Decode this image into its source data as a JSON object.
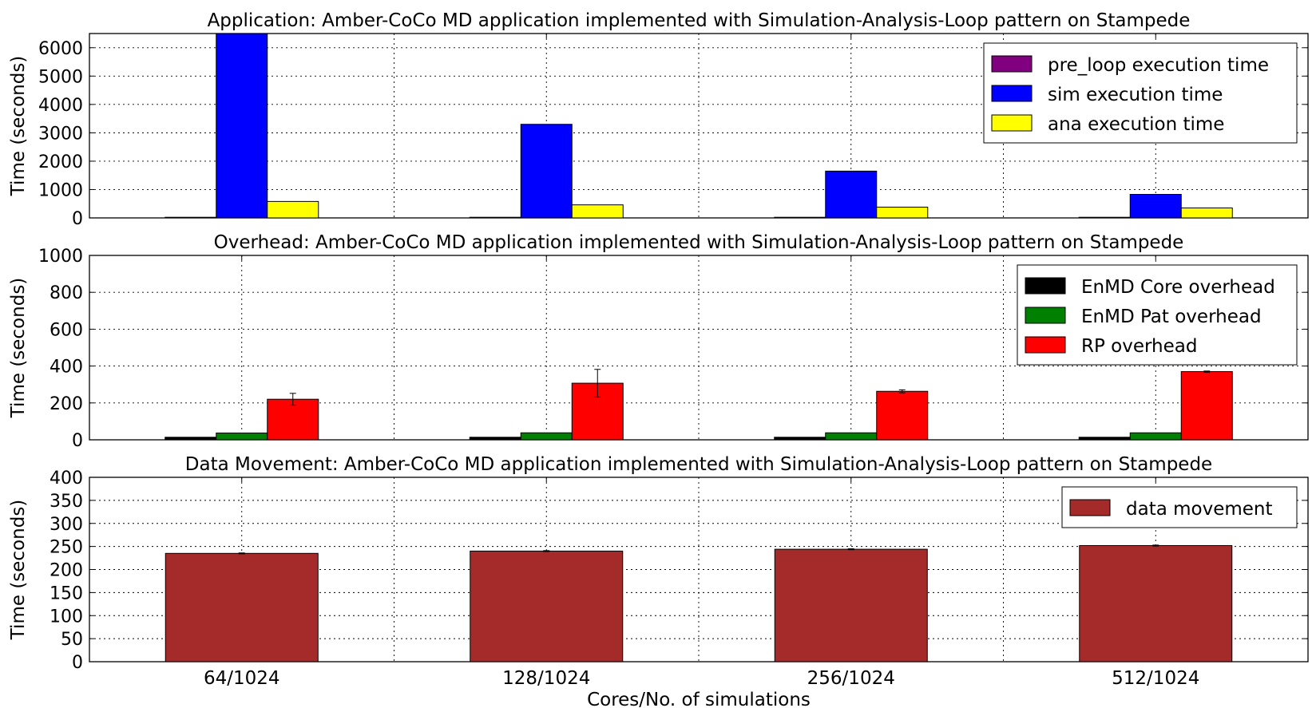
{
  "chart_data": [
    {
      "type": "bar",
      "title": "Application: Amber-CoCo MD application implemented with Simulation-Analysis-Loop pattern on Stampede",
      "ylabel": "Time (seconds)",
      "xlabel": "",
      "categories": [
        "64/1024",
        "128/1024",
        "256/1024",
        "512/1024"
      ],
      "ylim": [
        0,
        6500
      ],
      "yticks": [
        "0",
        "1000",
        "2000",
        "3000",
        "4000",
        "5000",
        "6000"
      ],
      "grid": true,
      "legend_position": "top-right",
      "series": [
        {
          "name": "pre_loop execution time",
          "color": "#800080",
          "values": [
            5,
            5,
            5,
            5
          ]
        },
        {
          "name": "sim execution time",
          "color": "#0000ff",
          "values": [
            6600,
            3300,
            1650,
            830
          ]
        },
        {
          "name": "ana execution time",
          "color": "#ffff00",
          "values": [
            580,
            460,
            380,
            350
          ]
        }
      ]
    },
    {
      "type": "bar",
      "title": "Overhead: Amber-CoCo MD application implemented with Simulation-Analysis-Loop pattern on Stampede",
      "ylabel": "Time (seconds)",
      "xlabel": "",
      "categories": [
        "64/1024",
        "128/1024",
        "256/1024",
        "512/1024"
      ],
      "ylim": [
        0,
        1000
      ],
      "yticks": [
        "0",
        "200",
        "400",
        "600",
        "800",
        "1000"
      ],
      "grid": true,
      "legend_position": "top-right",
      "series": [
        {
          "name": "EnMD Core overhead",
          "color": "#000000",
          "values": [
            14,
            14,
            14,
            14
          ]
        },
        {
          "name": "EnMD Pat overhead",
          "color": "#008000",
          "values": [
            37,
            38,
            38,
            38
          ]
        },
        {
          "name": "RP overhead",
          "color": "#ff0000",
          "values": [
            220,
            307,
            263,
            370
          ],
          "errors": [
            32,
            75,
            8,
            3
          ]
        }
      ]
    },
    {
      "type": "bar",
      "title": "Data Movement: Amber-CoCo MD application implemented with Simulation-Analysis-Loop pattern on Stampede",
      "ylabel": "Time (seconds)",
      "xlabel": "Cores/No. of simulations",
      "categories": [
        "64/1024",
        "128/1024",
        "256/1024",
        "512/1024"
      ],
      "ylim": [
        0,
        400
      ],
      "yticks": [
        "0",
        "50",
        "100",
        "150",
        "200",
        "250",
        "300",
        "350",
        "400"
      ],
      "grid": true,
      "legend_position": "top-right",
      "series": [
        {
          "name": "data movement",
          "color": "#a52a2a",
          "values": [
            235,
            240,
            244,
            252
          ],
          "errors": [
            1,
            1,
            1,
            1
          ]
        }
      ]
    }
  ]
}
